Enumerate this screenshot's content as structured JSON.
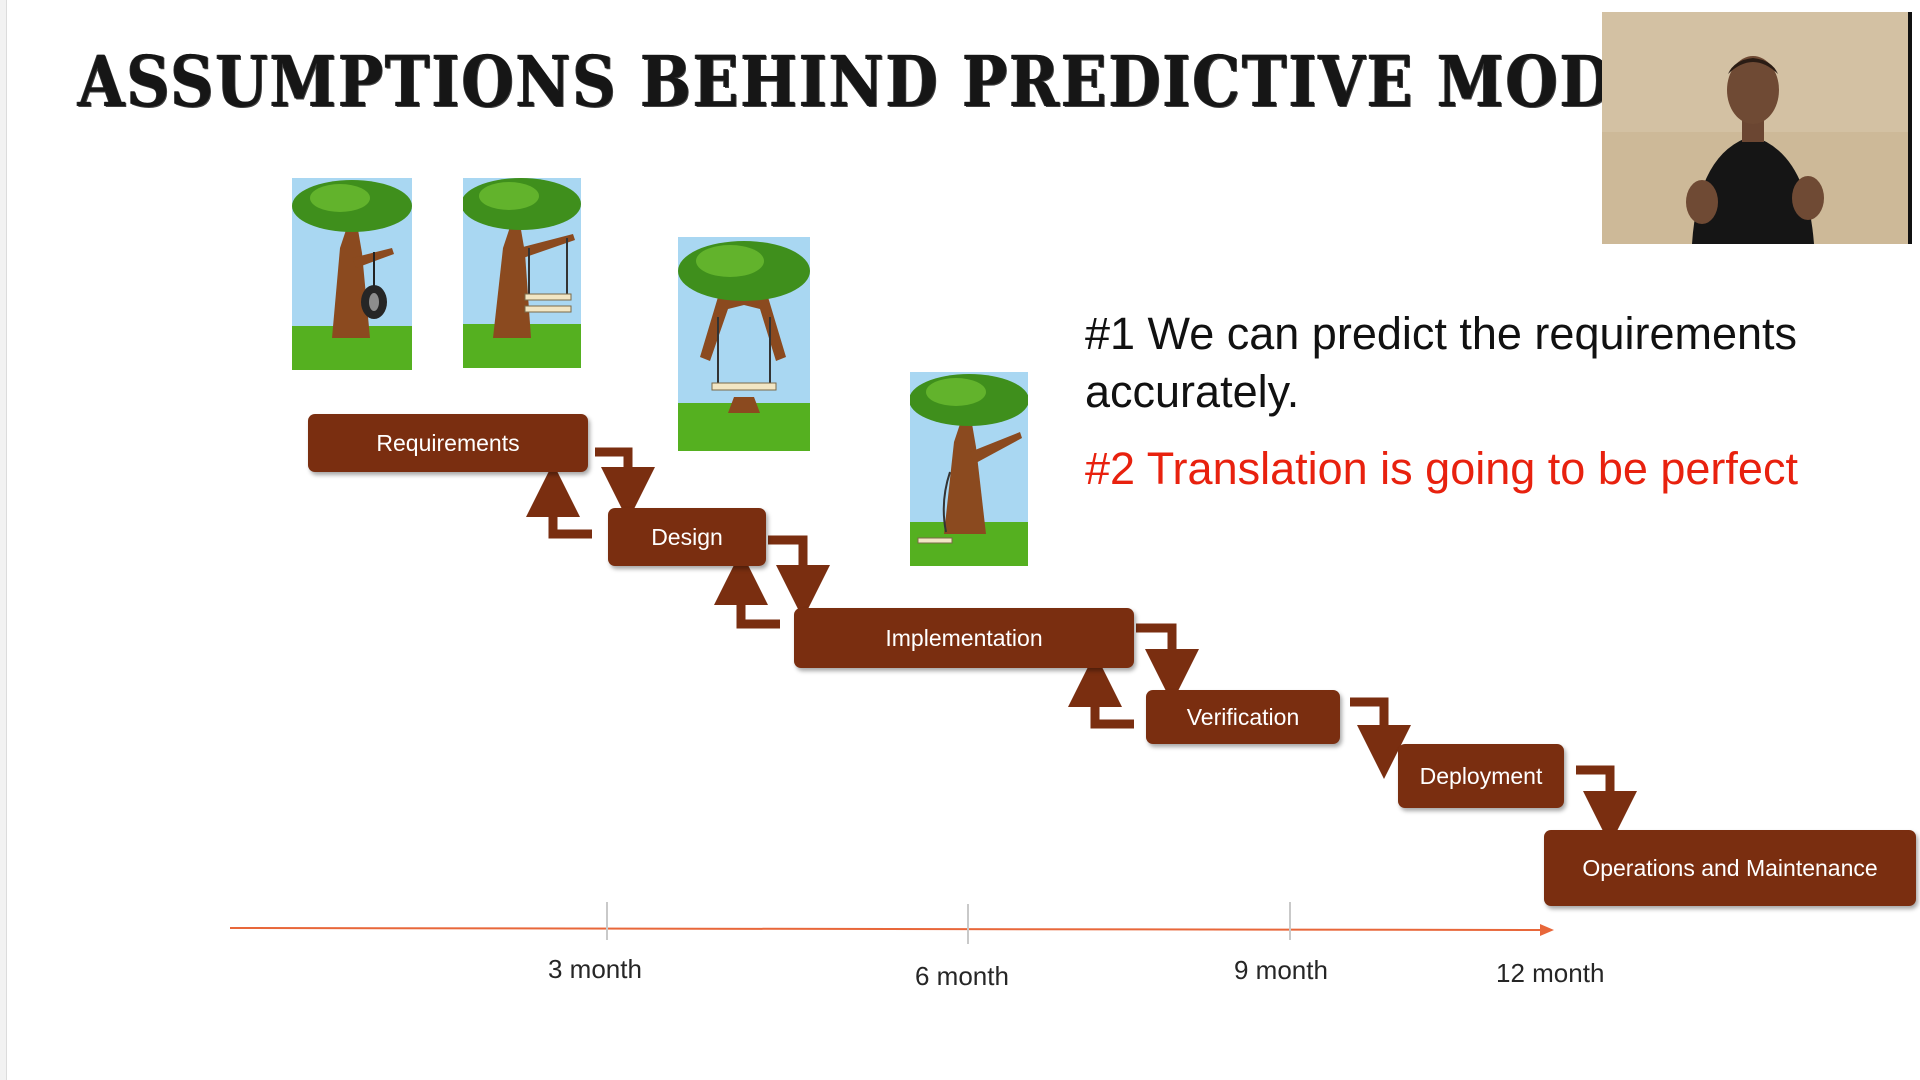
{
  "slide": {
    "title": "ASSUMPTIONS BEHIND PREDICTIVE MODEL"
  },
  "stages": [
    {
      "id": "requirements",
      "label": "Requirements"
    },
    {
      "id": "design",
      "label": "Design"
    },
    {
      "id": "implementation",
      "label": "Implementation"
    },
    {
      "id": "verification",
      "label": "Verification"
    },
    {
      "id": "deployment",
      "label": "Deployment"
    },
    {
      "id": "operations",
      "label": "Operations and Maintenance"
    }
  ],
  "statements": {
    "first": "#1 We can predict the requirements accurately.",
    "second": "#2 Translation is going to be perfect",
    "second_color": "#e8210e"
  },
  "timeline": {
    "ticks": [
      "3 month",
      "6 month",
      "9 month",
      "12 month"
    ],
    "axis_color": "#e8673a"
  },
  "colors": {
    "stage_fill": "#7a2e10",
    "title_text": "#161616"
  },
  "illustrations": [
    {
      "name": "tree-tire-swing"
    },
    {
      "name": "tree-board-swing"
    },
    {
      "name": "tree-cut-trunk-swing"
    },
    {
      "name": "tree-broken-swing"
    }
  ],
  "webcam": {
    "name": "presenter-video"
  }
}
